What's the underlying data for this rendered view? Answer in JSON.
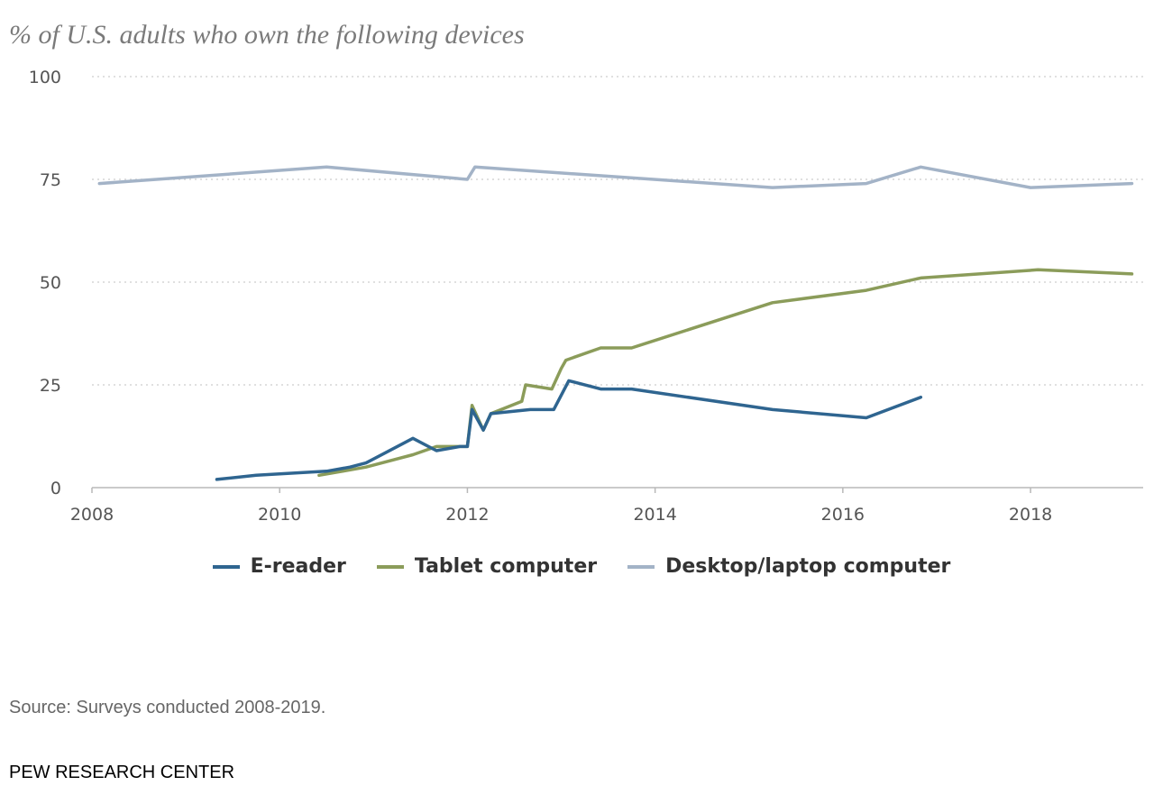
{
  "chart_data": {
    "type": "line",
    "subtitle": "% of U.S. adults who own the following devices",
    "y_ticks": [
      "100",
      "75",
      "50",
      "25",
      "0"
    ],
    "x_ticks": [
      "2008",
      "2010",
      "2012",
      "2014",
      "2016",
      "2018"
    ],
    "ylim": [
      0,
      100
    ],
    "xlim": [
      2008.0,
      2019.2
    ],
    "grid": "horizontal dotted",
    "legend_position": "bottom",
    "series": [
      {
        "name": "E-reader",
        "color": "#2f6590",
        "points": [
          [
            2009.33,
            2
          ],
          [
            2009.75,
            3
          ],
          [
            2010.5,
            4
          ],
          [
            2010.75,
            5
          ],
          [
            2010.92,
            6
          ],
          [
            2011.42,
            12
          ],
          [
            2011.67,
            9
          ],
          [
            2011.92,
            10
          ],
          [
            2012.0,
            10
          ],
          [
            2012.05,
            19
          ],
          [
            2012.17,
            14
          ],
          [
            2012.25,
            18
          ],
          [
            2012.67,
            19
          ],
          [
            2012.92,
            19
          ],
          [
            2013.08,
            26
          ],
          [
            2013.42,
            24
          ],
          [
            2013.75,
            24
          ],
          [
            2015.25,
            19
          ],
          [
            2016.25,
            17
          ],
          [
            2016.83,
            22
          ]
        ]
      },
      {
        "name": "Tablet computer",
        "color": "#8b9c5a",
        "points": [
          [
            2010.42,
            3
          ],
          [
            2010.67,
            4
          ],
          [
            2010.92,
            5
          ],
          [
            2011.42,
            8
          ],
          [
            2011.67,
            10
          ],
          [
            2011.92,
            10
          ],
          [
            2012.0,
            10
          ],
          [
            2012.05,
            20
          ],
          [
            2012.17,
            14
          ],
          [
            2012.25,
            18
          ],
          [
            2012.58,
            21
          ],
          [
            2012.62,
            25
          ],
          [
            2012.9,
            24
          ],
          [
            2013.0,
            29
          ],
          [
            2013.05,
            31
          ],
          [
            2013.42,
            34
          ],
          [
            2013.75,
            34
          ],
          [
            2015.25,
            45
          ],
          [
            2016.25,
            48
          ],
          [
            2016.83,
            51
          ],
          [
            2018.08,
            53
          ],
          [
            2019.08,
            52
          ]
        ]
      },
      {
        "name": "Desktop/laptop computer",
        "color": "#a3b3c7",
        "points": [
          [
            2008.08,
            74
          ],
          [
            2010.5,
            78
          ],
          [
            2012.0,
            75
          ],
          [
            2012.08,
            78
          ],
          [
            2015.25,
            73
          ],
          [
            2016.25,
            74
          ],
          [
            2016.83,
            78
          ],
          [
            2018.0,
            73
          ],
          [
            2019.08,
            74
          ]
        ]
      }
    ]
  },
  "source": "Source: Surveys conducted 2008-2019.",
  "footer": "PEW RESEARCH CENTER"
}
